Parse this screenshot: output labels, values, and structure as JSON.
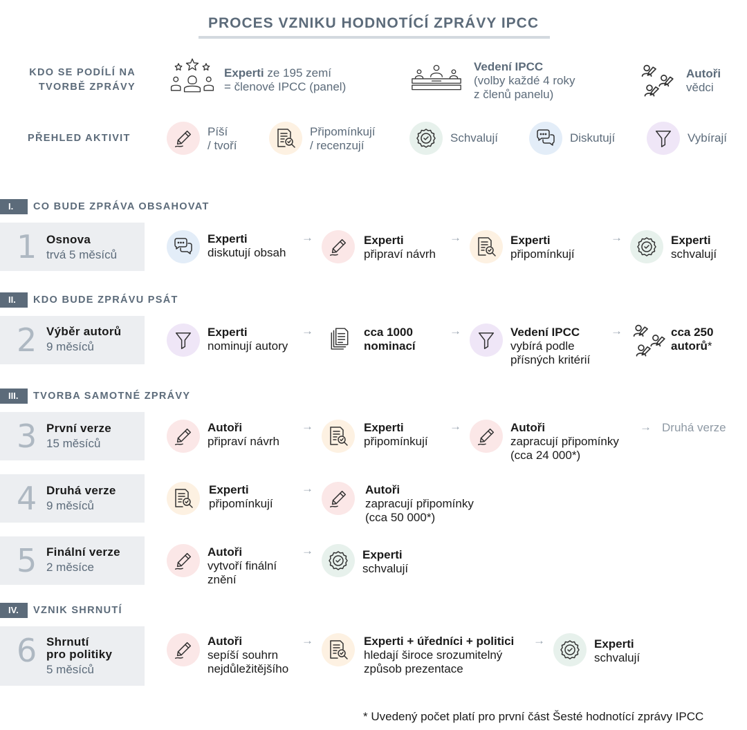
{
  "title": "PROCES VZNIKU HODNOTÍCÍ ZPRÁVY IPCC",
  "participants": {
    "label_line1": "KDO SE PODÍLÍ NA",
    "label_line2": "TVORBĚ ZPRÁVY",
    "experts_bold": "Experti",
    "experts_rest": " ze 195 zemí",
    "experts_line2": "= členové IPCC (panel)",
    "leadership_bold": "Vedení IPCC",
    "leadership_line2": "(volby každé 4 roky",
    "leadership_line3": "z členů panelu)",
    "authors_bold": "Autoři",
    "authors_line2": "vědci"
  },
  "activities": {
    "label": "PŘEHLED AKTIVIT",
    "write_1": "Píší",
    "write_2": "/ tvoří",
    "comment_1": "Připomínkují",
    "comment_2": "/ recenzují",
    "approve": "Schvalují",
    "discuss": "Diskutují",
    "select": "Vybírají"
  },
  "sections": {
    "s1_num": "I.",
    "s1_title": "CO BUDE ZPRÁVA OBSAHOVAT",
    "s2_num": "II.",
    "s2_title": "KDO BUDE ZPRÁVU PSÁT",
    "s3_num": "III.",
    "s3_title": "TVORBA SAMOTNÉ ZPRÁVY",
    "s4_num": "IV.",
    "s4_title": "VZNIK SHRNUTÍ"
  },
  "arrow": "→",
  "steps": {
    "s1": {
      "num": "1",
      "title": "Osnova",
      "sub": "trvá 5 měsíců",
      "a1_bold": "Experti",
      "a1_text": "diskutují obsah",
      "a2_bold": "Experti",
      "a2_text": "připraví návrh",
      "a3_bold": "Experti",
      "a3_text": "připomínkují",
      "a4_bold": "Experti",
      "a4_text": "schvalují"
    },
    "s2": {
      "num": "2",
      "title": "Výběr autorů",
      "sub": "9 měsíců",
      "a1_bold": "Experti",
      "a1_text": "nominují autory",
      "a2_bold1": "cca 1000",
      "a2_bold2": "nominací",
      "a3_bold": "Vedení IPCC",
      "a3_text1": "vybírá podle",
      "a3_text2": "přísných kritérií",
      "a4_bold1": "cca 250",
      "a4_bold2": "autorů",
      "a4_star": "*"
    },
    "s3": {
      "num": "3",
      "title": "První verze",
      "sub": "15 měsíců",
      "a1_bold": "Autoři",
      "a1_text": "připraví návrh",
      "a2_bold": "Experti",
      "a2_text": "připomínkují",
      "a3_bold": "Autoři",
      "a3_text1": "zapracují připomínky",
      "a3_text2": "(cca 24 000*)",
      "next": "Druhá verze"
    },
    "s4": {
      "num": "4",
      "title": "Druhá verze",
      "sub": "9 měsíců",
      "a1_bold": "Experti",
      "a1_text": "připomínkují",
      "a2_bold": "Autoři",
      "a2_text1": "zapracují připomínky",
      "a2_text2": "(cca 50 000*)"
    },
    "s5": {
      "num": "5",
      "title": "Finální verze",
      "sub": "2 měsíce",
      "a1_bold": "Autoři",
      "a1_text1": "vytvoří finální",
      "a1_text2": "znění",
      "a2_bold": "Experti",
      "a2_text": "schvalují"
    },
    "s6": {
      "num": "6",
      "title1": "Shrnutí",
      "title2": "pro politiky",
      "sub": "5 měsíců",
      "a1_bold": "Autoři",
      "a1_text1": "sepíší souhrn",
      "a1_text2": "nejdůležitějšího",
      "a2_bold": "Experti + úředníci + politici",
      "a2_text1": "hledají široce srozumitelný",
      "a2_text2": "způsob prezentace",
      "a3_bold": "Experti",
      "a3_text": "schvalují"
    }
  },
  "footnote": "* Uvedený počet platí pro první část Šesté hodnotící zprávy IPCC",
  "colors": {
    "slate": "#5c6b7a",
    "write_bg": "#fbe7e7",
    "comment_bg": "#fdf1e2",
    "approve_bg": "#e7f1ec",
    "discuss_bg": "#e3edf8",
    "select_bg": "#efe6f7"
  }
}
